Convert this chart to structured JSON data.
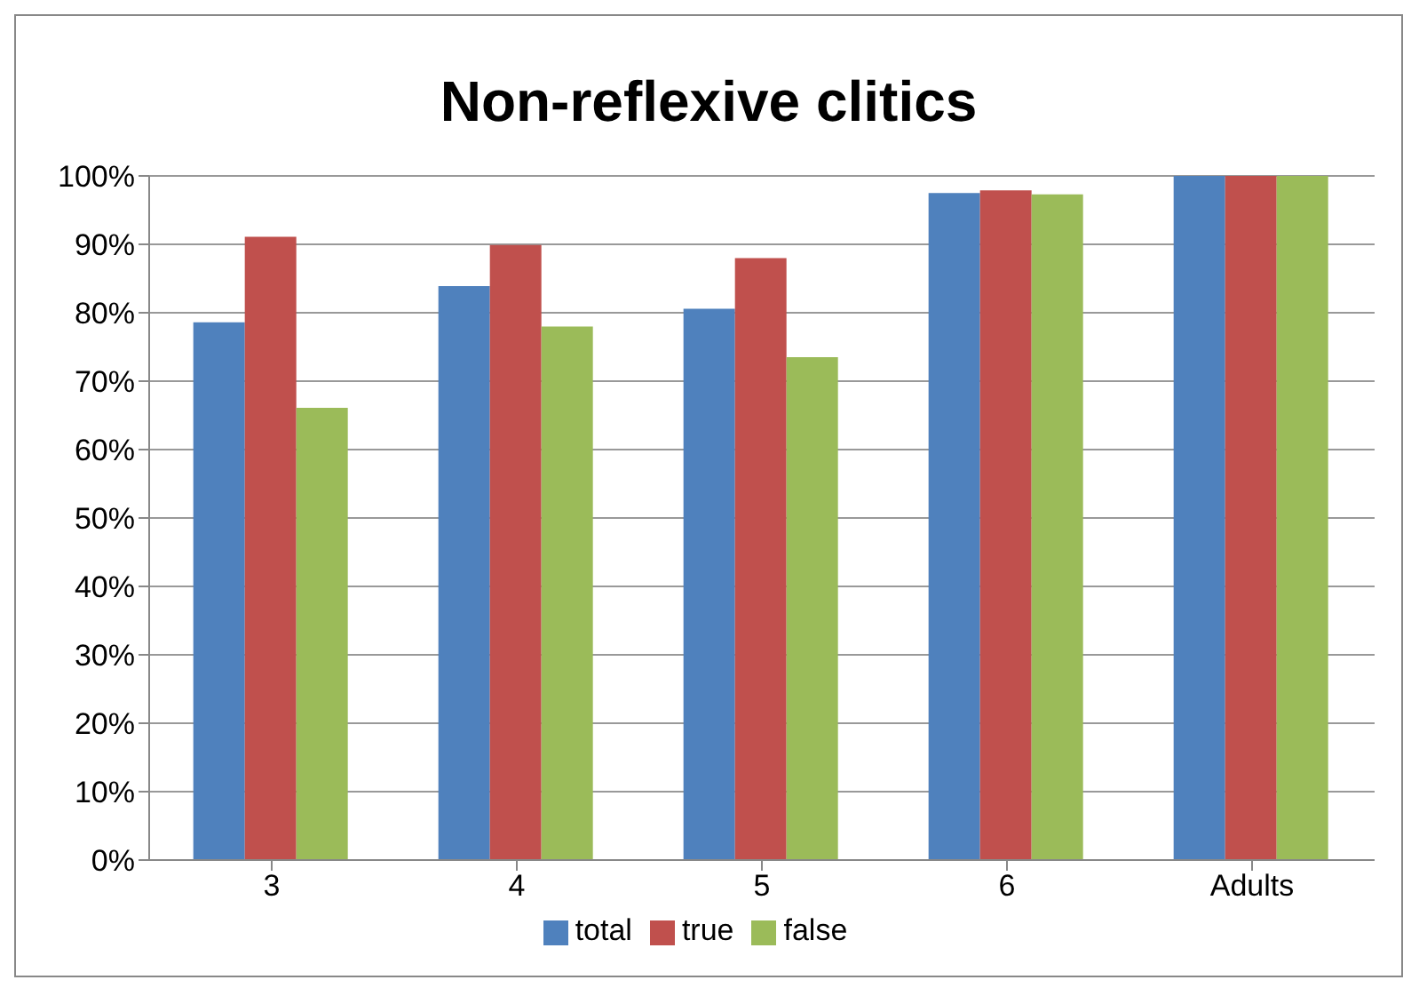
{
  "chart_data": {
    "type": "bar",
    "title": "Non-reflexive clitics",
    "categories": [
      "3",
      "4",
      "5",
      "6",
      "Adults"
    ],
    "series": [
      {
        "name": "total",
        "color": "#4f81bd",
        "values": [
          78.6,
          83.9,
          80.6,
          97.5,
          100
        ]
      },
      {
        "name": "true",
        "color": "#c0504d",
        "values": [
          91.1,
          89.9,
          88.0,
          97.9,
          100
        ]
      },
      {
        "name": "false",
        "color": "#9bbb59",
        "values": [
          66.1,
          78.0,
          73.5,
          97.3,
          100
        ]
      }
    ],
    "ylim": [
      0,
      100
    ],
    "yticks": [
      {
        "value": 0,
        "label": "0%"
      },
      {
        "value": 10,
        "label": "10%"
      },
      {
        "value": 20,
        "label": "20%"
      },
      {
        "value": 30,
        "label": "30%"
      },
      {
        "value": 40,
        "label": "40%"
      },
      {
        "value": 50,
        "label": "50%"
      },
      {
        "value": 60,
        "label": "60%"
      },
      {
        "value": 70,
        "label": "70%"
      },
      {
        "value": 80,
        "label": "80%"
      },
      {
        "value": 90,
        "label": "90%"
      },
      {
        "value": 100,
        "label": "100%"
      }
    ],
    "grid": "y",
    "legend": "bottom"
  }
}
